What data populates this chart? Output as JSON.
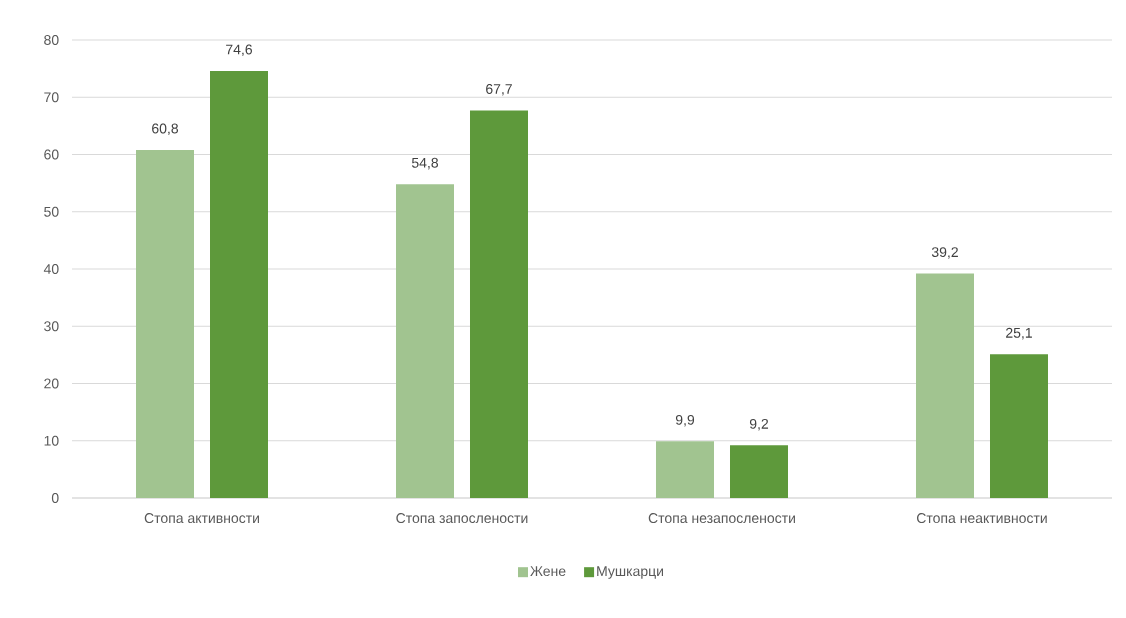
{
  "chart_data": {
    "type": "bar",
    "categories": [
      "Стопа активности",
      "Стопа запослености",
      "Стопа незапослености",
      "Стопа неактивности"
    ],
    "series": [
      {
        "name": "Жене",
        "color": "#a1c490",
        "values": [
          60.8,
          54.8,
          9.9,
          39.2
        ],
        "value_labels": [
          "60,8",
          "54,8",
          "9,9",
          "39,2"
        ]
      },
      {
        "name": "Мушкарци",
        "color": "#5e993b",
        "values": [
          74.6,
          67.7,
          9.2,
          25.1
        ],
        "value_labels": [
          "74,6",
          "67,7",
          "9,2",
          "25,1"
        ]
      }
    ],
    "ylim": [
      0,
      80
    ],
    "yticks": [
      0,
      10,
      20,
      30,
      40,
      50,
      60,
      70,
      80
    ],
    "grid": "y",
    "legend": "bottom"
  }
}
